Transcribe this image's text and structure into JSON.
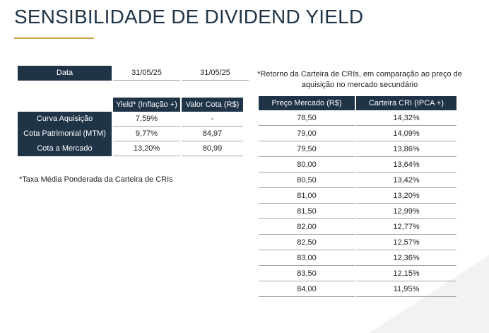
{
  "title": "SENSIBILIDADE DE DIVIDEND YIELD",
  "date_row": {
    "label": "Data",
    "values": [
      "31/05/25",
      "31/05/25"
    ]
  },
  "yield_table": {
    "headers": [
      "Yield* (Inflação +)",
      "Valor Cota (R$)"
    ],
    "rows": [
      {
        "label": "Curva Aquisição",
        "values": [
          "7,59%",
          "-"
        ]
      },
      {
        "label": "Cota Patrimonial (MTM)",
        "values": [
          "9,77%",
          "84,97"
        ]
      },
      {
        "label": "Cota a Mercado",
        "values": [
          "13,20%",
          "80,99"
        ]
      }
    ]
  },
  "footnote_left": "*Taxa Média Ponderada da Carteira de CRIs",
  "footnote_right": "*Retorno da Carteira de CRIs, em comparação ao preço de aquisição no mercado secundário",
  "market_table": {
    "headers": [
      "Preço Mercado (R$)",
      "Carteira CRI (IPCA +)"
    ],
    "rows": [
      [
        "78,50",
        "14,32%"
      ],
      [
        "79,00",
        "14,09%"
      ],
      [
        "79,50",
        "13,86%"
      ],
      [
        "80,00",
        "13,64%"
      ],
      [
        "80,50",
        "13,42%"
      ],
      [
        "81,00",
        "13,20%"
      ],
      [
        "81,50",
        "12,99%"
      ],
      [
        "82,00",
        "12,77%"
      ],
      [
        "82,50",
        "12,57%"
      ],
      [
        "83,00",
        "12,36%"
      ],
      [
        "83,50",
        "12,15%"
      ],
      [
        "84,00",
        "11,95%"
      ]
    ]
  },
  "colors": {
    "header_bg": "#1f3447",
    "accent": "#c9a24a",
    "rule": "#9aa7b3"
  }
}
